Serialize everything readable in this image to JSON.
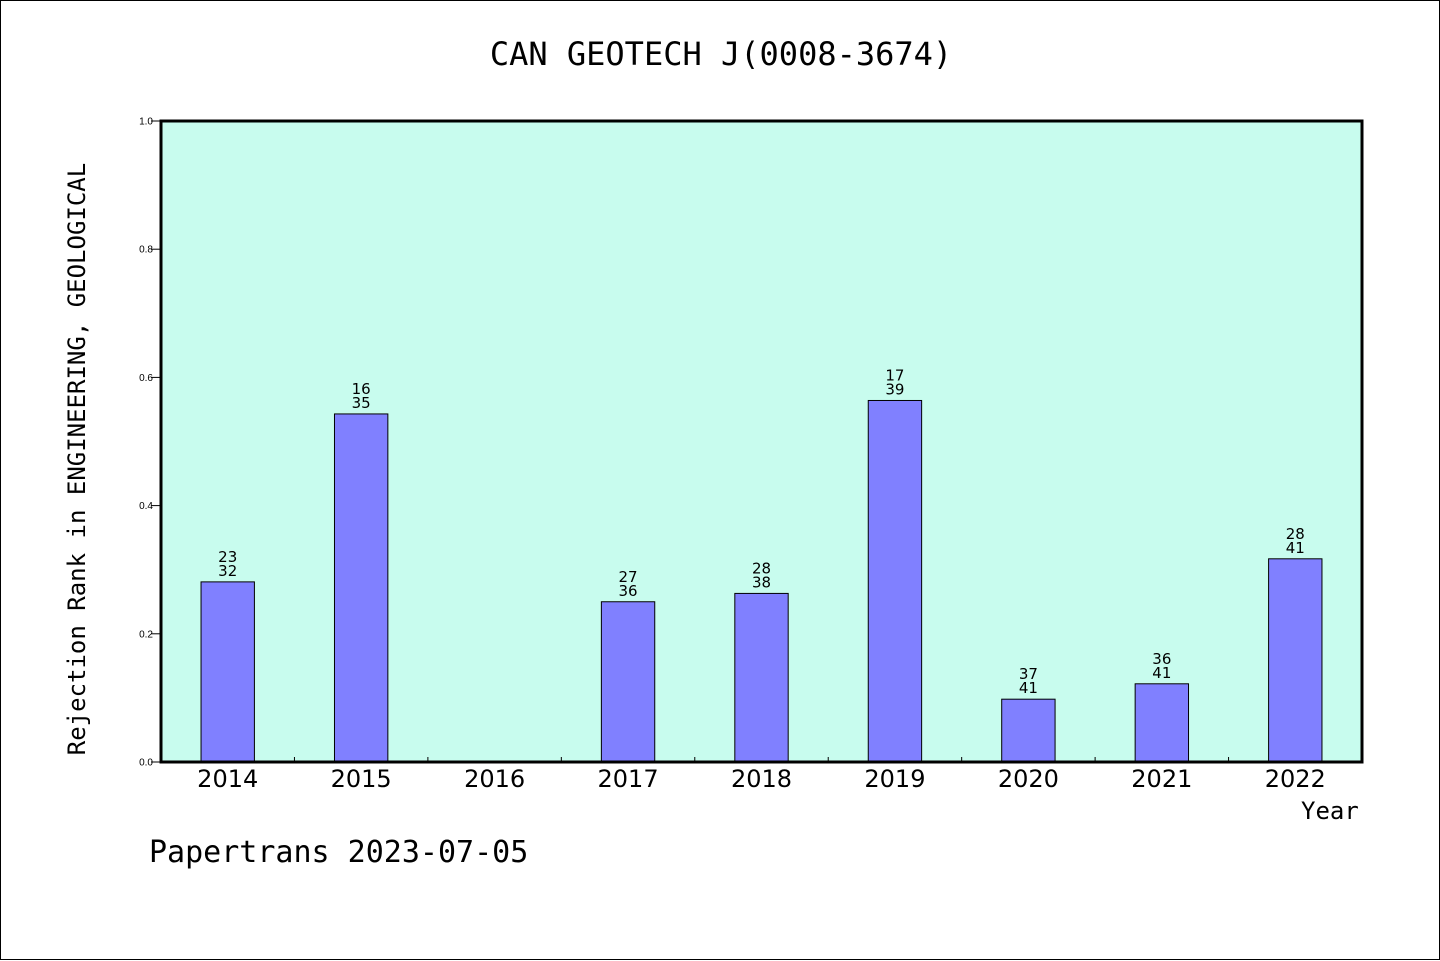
{
  "title": "CAN GEOTECH J(0008-3674)",
  "footer": "Papertrans 2023-07-05",
  "colors": {
    "plot_background": "#c8fcee",
    "bar_fill": "#8080ff",
    "bar_stroke": "#000000"
  },
  "chart_data": {
    "type": "bar",
    "title": "CAN GEOTECH J(0008-3674)",
    "xlabel": "Year",
    "ylabel": "Rejection Rank in ENGINEERING, GEOLOGICAL",
    "ylim": [
      0,
      1.0
    ],
    "yticks": [
      "0.0",
      "0.2",
      "0.4",
      "0.6",
      "0.8",
      "1.0"
    ],
    "grid": false,
    "categories": [
      "2014",
      "2015",
      "2016",
      "2017",
      "2018",
      "2019",
      "2020",
      "2021",
      "2022"
    ],
    "values": [
      0.281,
      0.543,
      null,
      0.25,
      0.263,
      0.564,
      0.098,
      0.122,
      0.317
    ],
    "annotations": [
      [
        "23",
        "32"
      ],
      [
        "16",
        "35"
      ],
      null,
      [
        "27",
        "36"
      ],
      [
        "28",
        "38"
      ],
      [
        "17",
        "39"
      ],
      [
        "37",
        "41"
      ],
      [
        "36",
        "41"
      ],
      [
        "28",
        "41"
      ]
    ]
  }
}
